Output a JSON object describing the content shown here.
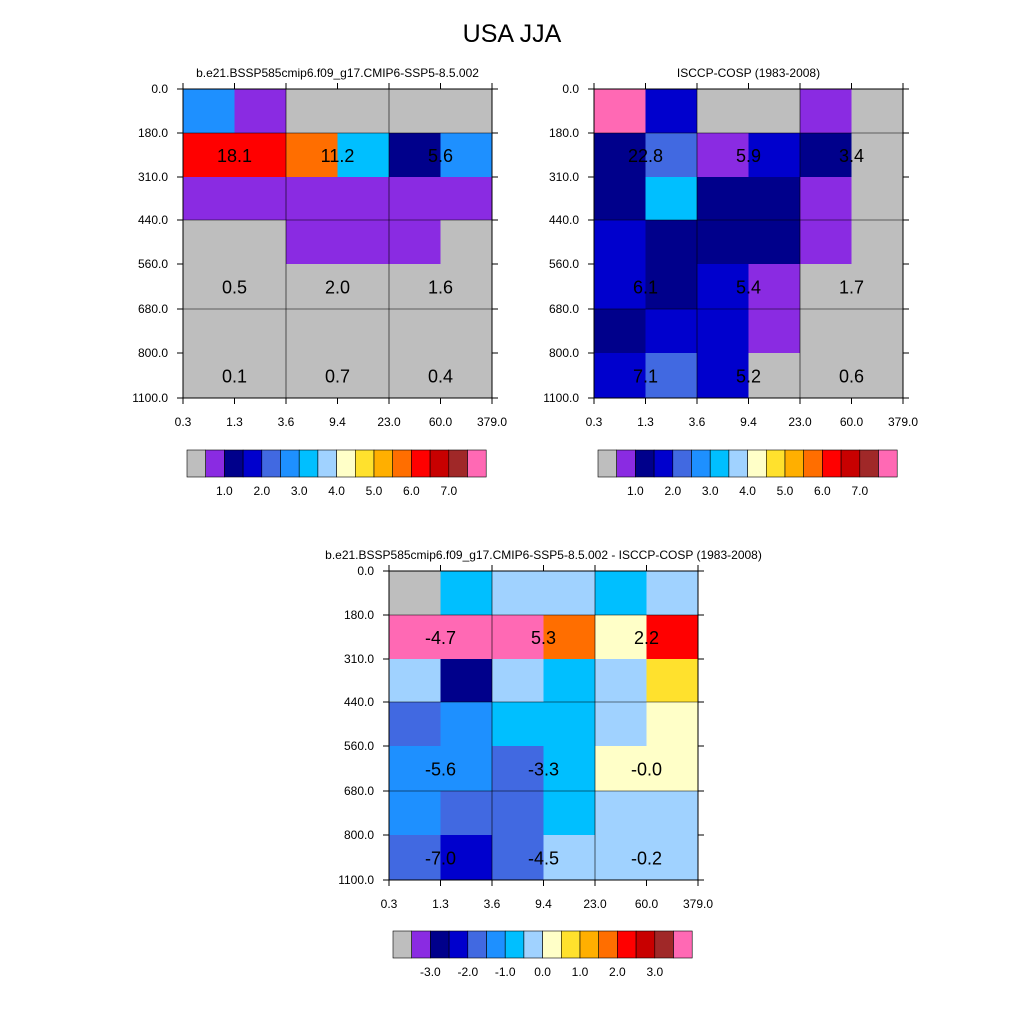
{
  "title": "USA JJA",
  "colors": {
    "grid": "#000000",
    "background": "#ffffff",
    "palette": [
      "#bebebe",
      "#8a2be2",
      "#00008b",
      "#0000cd",
      "#4169e1",
      "#1e90ff",
      "#00bfff",
      "#a0d2ff",
      "#ffffc8",
      "#ffe12d",
      "#ffaf00",
      "#ff6e00",
      "#ff0000",
      "#c80000",
      "#a02828",
      "#ff69b4"
    ]
  },
  "chart_data": [
    {
      "type": "heatmap",
      "title": "b.e21.BSSP585cmip6.f09_g17.CMIP6-SSP5-8.5.002",
      "x_ticks": [
        "0.3",
        "1.3",
        "3.6",
        "9.4",
        "23.0",
        "60.0",
        "379.0"
      ],
      "y_ticks": [
        "0.0",
        "180.0",
        "310.0",
        "440.0",
        "560.0",
        "680.0",
        "800.0",
        "1100.0"
      ],
      "cell_color_index": [
        [
          5,
          1,
          0,
          0,
          0,
          0
        ],
        [
          12,
          12,
          11,
          6,
          2,
          5
        ],
        [
          1,
          1,
          1,
          1,
          1,
          1
        ],
        [
          0,
          0,
          1,
          1,
          1,
          0
        ],
        [
          0,
          0,
          0,
          0,
          0,
          0
        ],
        [
          0,
          0,
          0,
          0,
          0,
          0
        ],
        [
          0,
          0,
          0,
          0,
          0,
          0
        ]
      ],
      "labels": [
        {
          "text": "18.1",
          "col": 0,
          "row": 1
        },
        {
          "text": "11.2",
          "col": 2,
          "row": 1
        },
        {
          "text": "5.6",
          "col": 4,
          "row": 1
        },
        {
          "text": "0.5",
          "col": 0,
          "row": 4
        },
        {
          "text": "2.0",
          "col": 2,
          "row": 4
        },
        {
          "text": "1.6",
          "col": 4,
          "row": 4
        },
        {
          "text": "0.1",
          "col": 0,
          "row": 6
        },
        {
          "text": "0.7",
          "col": 2,
          "row": 6
        },
        {
          "text": "0.4",
          "col": 4,
          "row": 6
        }
      ],
      "colorbar_labels": [
        "1.0",
        "2.0",
        "3.0",
        "4.0",
        "5.0",
        "6.0",
        "7.0"
      ]
    },
    {
      "type": "heatmap",
      "title": "ISCCP-COSP (1983-2008)",
      "x_ticks": [
        "0.3",
        "1.3",
        "3.6",
        "9.4",
        "23.0",
        "60.0",
        "379.0"
      ],
      "y_ticks": [
        "0.0",
        "180.0",
        "310.0",
        "440.0",
        "560.0",
        "680.0",
        "800.0",
        "1100.0"
      ],
      "cell_color_index": [
        [
          15,
          3,
          0,
          0,
          1,
          0
        ],
        [
          2,
          4,
          1,
          3,
          2,
          0
        ],
        [
          2,
          6,
          2,
          2,
          1,
          0
        ],
        [
          3,
          2,
          2,
          2,
          1,
          0
        ],
        [
          3,
          2,
          3,
          1,
          0,
          0
        ],
        [
          2,
          3,
          3,
          1,
          0,
          0
        ],
        [
          3,
          4,
          3,
          0,
          0,
          0
        ]
      ],
      "labels": [
        {
          "text": "22.8",
          "col": 0,
          "row": 1
        },
        {
          "text": "5.9",
          "col": 2,
          "row": 1
        },
        {
          "text": "3.4",
          "col": 4,
          "row": 1
        },
        {
          "text": "6.1",
          "col": 0,
          "row": 4
        },
        {
          "text": "5.4",
          "col": 2,
          "row": 4
        },
        {
          "text": "1.7",
          "col": 4,
          "row": 4
        },
        {
          "text": "7.1",
          "col": 0,
          "row": 6
        },
        {
          "text": "5.2",
          "col": 2,
          "row": 6
        },
        {
          "text": "0.6",
          "col": 4,
          "row": 6
        }
      ],
      "colorbar_labels": [
        "1.0",
        "2.0",
        "3.0",
        "4.0",
        "5.0",
        "6.0",
        "7.0"
      ]
    },
    {
      "type": "heatmap",
      "title": "b.e21.BSSP585cmip6.f09_g17.CMIP6-SSP5-8.5.002 - ISCCP-COSP (1983-2008)",
      "x_ticks": [
        "0.3",
        "1.3",
        "3.6",
        "9.4",
        "23.0",
        "60.0",
        "379.0"
      ],
      "y_ticks": [
        "0.0",
        "180.0",
        "310.0",
        "440.0",
        "560.0",
        "680.0",
        "800.0",
        "1100.0"
      ],
      "cell_color_index": [
        [
          0,
          6,
          7,
          7,
          6,
          7
        ],
        [
          15,
          15,
          15,
          11,
          8,
          12
        ],
        [
          7,
          2,
          7,
          6,
          7,
          9
        ],
        [
          4,
          5,
          6,
          6,
          7,
          8
        ],
        [
          5,
          5,
          4,
          6,
          8,
          8
        ],
        [
          5,
          4,
          4,
          6,
          7,
          7
        ],
        [
          4,
          3,
          4,
          7,
          7,
          7
        ]
      ],
      "labels": [
        {
          "text": "-4.7",
          "col": 0,
          "row": 1
        },
        {
          "text": "5.3",
          "col": 2,
          "row": 1
        },
        {
          "text": "2.2",
          "col": 4,
          "row": 1
        },
        {
          "text": "-5.6",
          "col": 0,
          "row": 4
        },
        {
          "text": "-3.3",
          "col": 2,
          "row": 4
        },
        {
          "text": "-0.0",
          "col": 4,
          "row": 4
        },
        {
          "text": "-7.0",
          "col": 0,
          "row": 6
        },
        {
          "text": "-4.5",
          "col": 2,
          "row": 6
        },
        {
          "text": "-0.2",
          "col": 4,
          "row": 6
        }
      ],
      "colorbar_labels": [
        "-3.0",
        "-2.0",
        "-1.0",
        "0.0",
        "1.0",
        "2.0",
        "3.0"
      ]
    }
  ]
}
